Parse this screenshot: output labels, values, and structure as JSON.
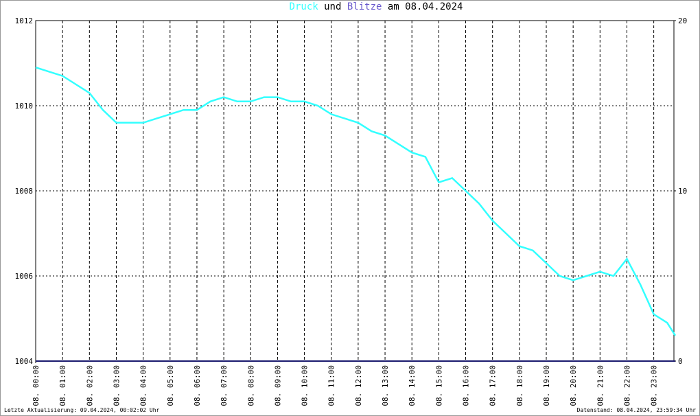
{
  "chart_data": {
    "type": "line",
    "title": [
      "Druck",
      "und",
      "Blitze",
      "am 08.04.2024"
    ],
    "footer_left": "Letzte Aktualisierung: 09.04.2024, 00:02:02 Uhr",
    "footer_right": "Datenstand: 08.04.2024, 23:59:34 Uhr",
    "xlim": [
      0,
      23.75
    ],
    "xticks": [
      {
        "value": 0,
        "label": "08. 00:00"
      },
      {
        "value": 1,
        "label": "08. 01:00"
      },
      {
        "value": 2,
        "label": "08. 02:00"
      },
      {
        "value": 3,
        "label": "08. 03:00"
      },
      {
        "value": 4,
        "label": "08. 04:00"
      },
      {
        "value": 5,
        "label": "08. 05:00"
      },
      {
        "value": 6,
        "label": "08. 06:00"
      },
      {
        "value": 7,
        "label": "08. 07:00"
      },
      {
        "value": 8,
        "label": "08. 08:00"
      },
      {
        "value": 9,
        "label": "08. 09:00"
      },
      {
        "value": 10,
        "label": "08. 10:00"
      },
      {
        "value": 11,
        "label": "08. 11:00"
      },
      {
        "value": 12,
        "label": "08. 12:00"
      },
      {
        "value": 13,
        "label": "08. 13:00"
      },
      {
        "value": 14,
        "label": "08. 14:00"
      },
      {
        "value": 15,
        "label": "08. 15:00"
      },
      {
        "value": 16,
        "label": "08. 16:00"
      },
      {
        "value": 17,
        "label": "08. 17:00"
      },
      {
        "value": 18,
        "label": "08. 18:00"
      },
      {
        "value": 19,
        "label": "08. 19:00"
      },
      {
        "value": 20,
        "label": "08. 20:00"
      },
      {
        "value": 21,
        "label": "08. 21:00"
      },
      {
        "value": 22,
        "label": "08. 22:00"
      },
      {
        "value": 23,
        "label": "08. 23:00"
      }
    ],
    "ylim": [
      1004,
      1012
    ],
    "yticks": [
      1004,
      1006,
      1008,
      1010,
      1012
    ],
    "y2lim": [
      0,
      20
    ],
    "y2ticks": [
      0,
      10,
      20
    ],
    "grid": true,
    "x": [
      0,
      0.5,
      1,
      1.5,
      2,
      2.5,
      3,
      3.5,
      4,
      4.5,
      5,
      5.5,
      6,
      6.5,
      7,
      7.5,
      8,
      8.5,
      9,
      9.5,
      10,
      10.5,
      11,
      11.5,
      12,
      12.5,
      13,
      13.5,
      14,
      14.5,
      15,
      15.5,
      16,
      16.5,
      17,
      17.5,
      18,
      18.5,
      19,
      19.5,
      20,
      20.5,
      21,
      21.5,
      22,
      22.5,
      23,
      23.5,
      23.8
    ],
    "series": [
      {
        "name": "Druck",
        "color": "#33ffff",
        "values": [
          1010.9,
          1010.8,
          1010.7,
          1010.5,
          1010.3,
          1009.9,
          1009.6,
          1009.6,
          1009.6,
          1009.7,
          1009.8,
          1009.9,
          1009.9,
          1010.1,
          1010.2,
          1010.1,
          1010.1,
          1010.2,
          1010.2,
          1010.1,
          1010.1,
          1010.0,
          1009.8,
          1009.7,
          1009.6,
          1009.4,
          1009.3,
          1009.1,
          1008.9,
          1008.8,
          1008.2,
          1008.3,
          1008.0,
          1007.7,
          1007.3,
          1007.0,
          1006.7,
          1006.6,
          1006.3,
          1006.0,
          1005.9,
          1006.0,
          1006.1,
          1006.0,
          1006.4,
          1005.8,
          1005.1,
          1004.9,
          1004.6
        ]
      },
      {
        "name": "Blitze",
        "color": "#1a1a6e",
        "axis": "y2",
        "values": [
          0,
          0,
          0,
          0,
          0,
          0,
          0,
          0,
          0,
          0,
          0,
          0,
          0,
          0,
          0,
          0,
          0,
          0,
          0,
          0,
          0,
          0,
          0,
          0,
          0,
          0,
          0,
          0,
          0,
          0,
          0,
          0,
          0,
          0,
          0,
          0,
          0,
          0,
          0,
          0,
          0,
          0,
          0,
          0,
          0,
          0,
          0,
          0,
          0
        ]
      }
    ]
  }
}
